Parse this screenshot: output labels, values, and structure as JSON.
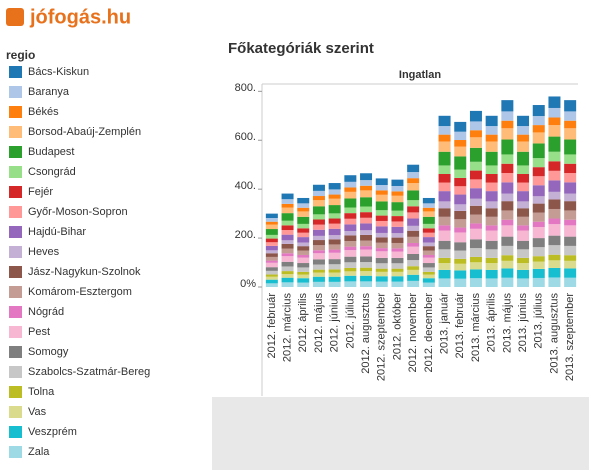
{
  "logo": "jófogás.hu",
  "chart_data": {
    "type": "stacked-bar",
    "title": "Főkategóriák szerint",
    "subtitle": "Ingatlan",
    "legend_title": "regio",
    "categories": [
      "2012. február",
      "2012. március",
      "2012. április",
      "2012. május",
      "2012. június",
      "2012. július",
      "2012. augusztus",
      "2012. szeptember",
      "2012. október",
      "2012. november",
      "2012. december",
      "2013. január",
      "2013. február",
      "2013. március",
      "2013. április",
      "2013. május",
      "2013. június",
      "2013. július",
      "2013. augusztus",
      "2013. szeptember"
    ],
    "ylim": [
      0,
      830
    ],
    "yticks": [
      {
        "value": 0,
        "label": "0%"
      },
      {
        "value": 200,
        "label": "200."
      },
      {
        "value": 400,
        "label": "400."
      },
      {
        "value": 600,
        "label": "600."
      },
      {
        "value": 800,
        "label": "800."
      }
    ],
    "series": [
      {
        "name": "Bács-Kiskun",
        "color": "#1f77b4",
        "values": [
          18,
          23,
          22,
          25,
          26,
          27,
          28,
          27,
          26,
          30,
          22,
          42,
          40,
          43,
          42,
          46,
          42,
          45,
          47,
          46
        ]
      },
      {
        "name": "Baranya",
        "color": "#aec7e8",
        "values": [
          15,
          19,
          18,
          21,
          21,
          23,
          23,
          22,
          22,
          25,
          18,
          35,
          34,
          36,
          35,
          38,
          35,
          37,
          39,
          38
        ]
      },
      {
        "name": "Békés",
        "color": "#ff7f0e",
        "values": [
          12,
          15,
          15,
          17,
          17,
          18,
          19,
          18,
          18,
          20,
          15,
          28,
          27,
          29,
          28,
          31,
          28,
          30,
          31,
          31
        ]
      },
      {
        "name": "Borsod-Abaúj-Zemplén",
        "color": "#ffbb78",
        "values": [
          18,
          23,
          22,
          25,
          26,
          27,
          28,
          27,
          26,
          30,
          22,
          42,
          40,
          43,
          42,
          46,
          42,
          45,
          47,
          46
        ]
      },
      {
        "name": "Budapest",
        "color": "#2ca02c",
        "values": [
          24,
          31,
          29,
          33,
          34,
          37,
          38,
          36,
          35,
          40,
          29,
          56,
          54,
          57,
          56,
          61,
          56,
          60,
          62,
          61
        ]
      },
      {
        "name": "Csongrád",
        "color": "#98df8a",
        "values": [
          15,
          19,
          18,
          21,
          21,
          23,
          23,
          22,
          22,
          25,
          18,
          35,
          34,
          36,
          35,
          38,
          35,
          37,
          39,
          38
        ]
      },
      {
        "name": "Fejér",
        "color": "#d62728",
        "values": [
          15,
          19,
          18,
          21,
          21,
          23,
          23,
          22,
          22,
          25,
          18,
          35,
          34,
          36,
          35,
          38,
          35,
          37,
          39,
          38
        ]
      },
      {
        "name": "Győr-Moson-Sopron",
        "color": "#ff9896",
        "values": [
          15,
          19,
          18,
          21,
          21,
          23,
          23,
          22,
          22,
          25,
          18,
          35,
          34,
          36,
          35,
          38,
          35,
          37,
          39,
          38
        ]
      },
      {
        "name": "Hajdú-Bihar",
        "color": "#9467bd",
        "values": [
          18,
          23,
          22,
          25,
          26,
          27,
          28,
          27,
          26,
          30,
          22,
          42,
          40,
          43,
          42,
          46,
          42,
          45,
          47,
          46
        ]
      },
      {
        "name": "Heves",
        "color": "#c5b0d5",
        "values": [
          12,
          15,
          15,
          17,
          17,
          18,
          19,
          18,
          18,
          20,
          15,
          28,
          27,
          29,
          28,
          31,
          28,
          30,
          31,
          31
        ]
      },
      {
        "name": "Jász-Nagykun-Szolnok",
        "color": "#8c564b",
        "values": [
          15,
          19,
          18,
          21,
          21,
          23,
          23,
          22,
          22,
          25,
          18,
          35,
          34,
          36,
          35,
          38,
          35,
          37,
          39,
          38
        ]
      },
      {
        "name": "Komárom-Esztergom",
        "color": "#c49c94",
        "values": [
          15,
          19,
          18,
          21,
          21,
          23,
          23,
          22,
          22,
          25,
          18,
          35,
          34,
          36,
          35,
          38,
          35,
          37,
          39,
          38
        ]
      },
      {
        "name": "Nógrád",
        "color": "#e377c2",
        "values": [
          9,
          12,
          11,
          12,
          13,
          14,
          14,
          13,
          13,
          15,
          11,
          21,
          20,
          22,
          21,
          23,
          21,
          22,
          23,
          23
        ]
      },
      {
        "name": "Pest",
        "color": "#f7b6d2",
        "values": [
          18,
          23,
          22,
          25,
          26,
          27,
          28,
          27,
          26,
          30,
          22,
          42,
          40,
          43,
          42,
          46,
          42,
          45,
          47,
          46
        ]
      },
      {
        "name": "Somogy",
        "color": "#7f7f7f",
        "values": [
          15,
          19,
          18,
          21,
          21,
          23,
          23,
          22,
          22,
          25,
          18,
          35,
          34,
          36,
          35,
          38,
          35,
          37,
          39,
          38
        ]
      },
      {
        "name": "Szabolcs-Szatmár-Bereg",
        "color": "#c7c7c7",
        "values": [
          15,
          19,
          18,
          21,
          21,
          23,
          23,
          22,
          22,
          25,
          18,
          35,
          34,
          36,
          35,
          38,
          35,
          37,
          39,
          38
        ]
      },
      {
        "name": "Tolna",
        "color": "#bcbd22",
        "values": [
          9,
          12,
          11,
          12,
          13,
          14,
          14,
          13,
          13,
          15,
          11,
          21,
          20,
          22,
          21,
          23,
          21,
          22,
          23,
          23
        ]
      },
      {
        "name": "Vas",
        "color": "#dbdb8d",
        "values": [
          12,
          15,
          15,
          17,
          17,
          18,
          19,
          18,
          18,
          20,
          15,
          28,
          27,
          29,
          28,
          31,
          28,
          30,
          31,
          31
        ]
      },
      {
        "name": "Veszprém",
        "color": "#17becf",
        "values": [
          15,
          19,
          18,
          21,
          21,
          23,
          23,
          22,
          22,
          25,
          18,
          35,
          34,
          36,
          35,
          38,
          35,
          37,
          39,
          38
        ]
      },
      {
        "name": "Zala",
        "color": "#9edae5",
        "values": [
          15,
          19,
          18,
          21,
          21,
          23,
          23,
          22,
          22,
          25,
          18,
          35,
          34,
          36,
          35,
          38,
          35,
          37,
          39,
          38
        ]
      }
    ]
  }
}
